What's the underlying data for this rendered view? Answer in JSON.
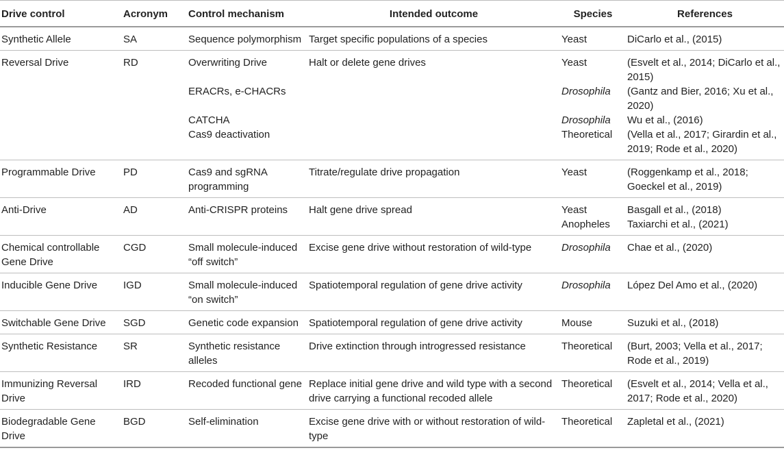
{
  "headers": {
    "drive_control": "Drive control",
    "acronym": "Acronym",
    "mechanism": "Control mechanism",
    "outcome": "Intended outcome",
    "species": "Species",
    "references": "References"
  },
  "rows": [
    {
      "drive": "Synthetic Allele",
      "acronym": "SA",
      "mechanism": "Sequence polymorphism",
      "outcome": "Target specific populations of a species",
      "species": [
        "Yeast"
      ],
      "references": [
        "DiCarlo et al., (2015)"
      ]
    },
    {
      "drive": "Reversal Drive",
      "acronym": "RD",
      "mechanism": [
        "Overwriting Drive",
        "ERACRs, e-CHACRs",
        "CATCHA",
        "Cas9 deactivation"
      ],
      "outcome": "Halt or delete gene drives",
      "species": [
        "Yeast",
        "Drosophila",
        "Drosophila",
        "Theoretical"
      ],
      "references": [
        "(Esvelt et al., 2014; DiCarlo et al., 2015)",
        "(Gantz and Bier, 2016; Xu et al., 2020)",
        "Wu et al., (2016)",
        "(Vella et al., 2017; Girardin et al., 2019; Rode et al., 2020)"
      ]
    },
    {
      "drive": "Programmable Drive",
      "acronym": "PD",
      "mechanism": "Cas9 and sgRNA programming",
      "outcome": "Titrate/regulate drive propagation",
      "species": [
        "Yeast"
      ],
      "references": [
        "(Roggenkamp et al., 2018; Goeckel et al., 2019)"
      ]
    },
    {
      "drive": "Anti-Drive",
      "acronym": "AD",
      "mechanism": "Anti-CRISPR proteins",
      "outcome": "Halt gene drive spread",
      "species": [
        "Yeast",
        "Anopheles"
      ],
      "references": [
        "Basgall et al., (2018)",
        "Taxiarchi et al., (2021)"
      ]
    },
    {
      "drive": "Chemical controllable Gene Drive",
      "acronym": "CGD",
      "mechanism": "Small molecule-induced “off switch”",
      "outcome": "Excise gene drive without restoration of wild-type",
      "species": [
        "Drosophila"
      ],
      "references": [
        "Chae et al., (2020)"
      ]
    },
    {
      "drive": "Inducible Gene Drive",
      "acronym": "IGD",
      "mechanism": "Small molecule-induced “on switch”",
      "outcome": "Spatiotemporal regulation of gene drive activity",
      "species": [
        "Drosophila"
      ],
      "references": [
        "López Del Amo et al., (2020)"
      ]
    },
    {
      "drive": "Switchable Gene Drive",
      "acronym": "SGD",
      "mechanism": "Genetic code expansion",
      "outcome": "Spatiotemporal regulation of gene drive activity",
      "species": [
        "Mouse"
      ],
      "references": [
        "Suzuki et al., (2018)"
      ]
    },
    {
      "drive": "Synthetic Resistance",
      "acronym": "SR",
      "mechanism": "Synthetic resistance alleles",
      "outcome": "Drive extinction through introgressed resistance",
      "species": [
        "Theoretical"
      ],
      "references": [
        "(Burt, 2003; Vella et al., 2017; Rode et al., 2019)"
      ]
    },
    {
      "drive": "Immunizing Reversal Drive",
      "acronym": "IRD",
      "mechanism": "Recoded functional gene",
      "outcome": "Replace initial gene drive and wild type with a second drive carrying a functional recoded allele",
      "species": [
        "Theoretical"
      ],
      "references": [
        "(Esvelt et al., 2014; Vella et al., 2017; Rode et al., 2020)"
      ]
    },
    {
      "drive": "Biodegradable Gene Drive",
      "acronym": "BGD",
      "mechanism": "Self-elimination",
      "outcome": "Excise gene drive with or without restoration of wild-type",
      "species": [
        "Theoretical"
      ],
      "references": [
        "Zapletal et al., (2021)"
      ]
    }
  ]
}
